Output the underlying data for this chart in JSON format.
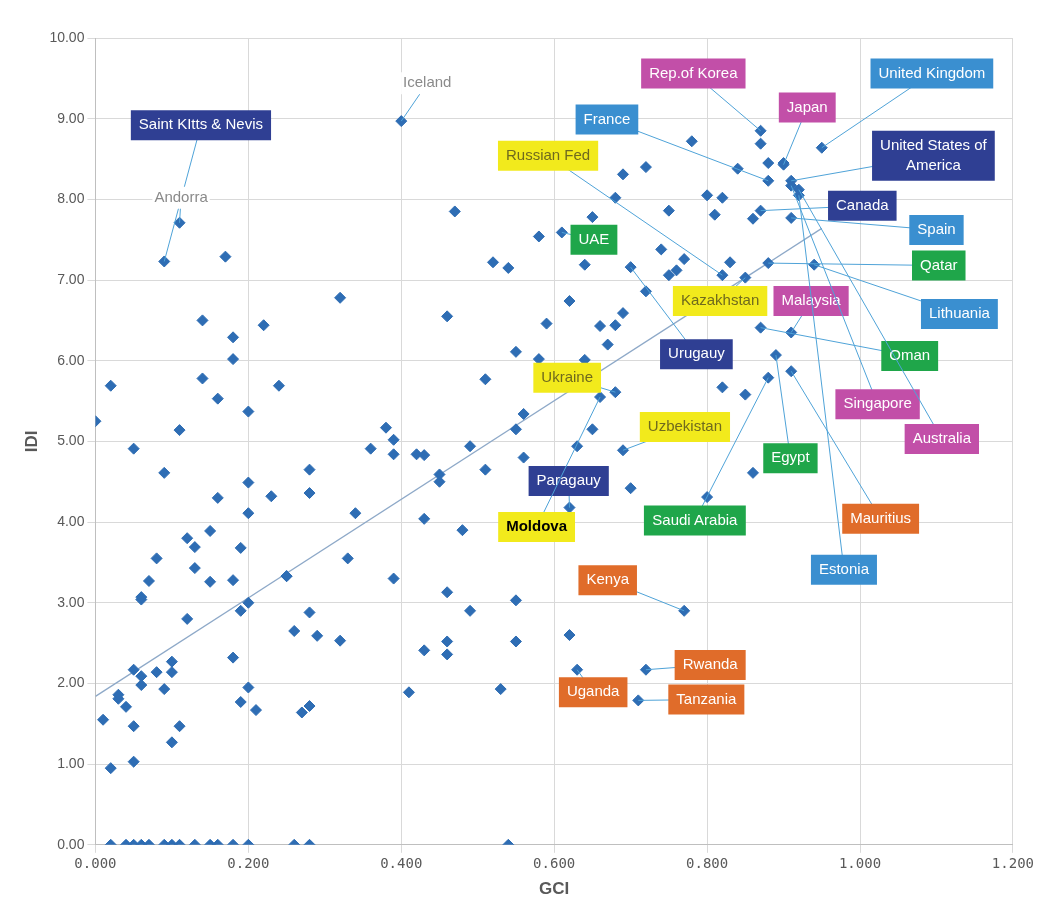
{
  "chart_data": {
    "type": "scatter",
    "xlabel": "GCI",
    "ylabel": "IDI",
    "xlim": [
      0,
      1.2
    ],
    "xticks": [
      {
        "value": 0,
        "label": "0.000"
      },
      {
        "value": 0.2,
        "label": "0.200"
      },
      {
        "value": 0.4,
        "label": "0.400"
      },
      {
        "value": 0.6,
        "label": "0.600"
      },
      {
        "value": 0.8,
        "label": "0.800"
      },
      {
        "value": 1,
        "label": "1.000"
      },
      {
        "value": 1.2,
        "label": "1.200"
      }
    ],
    "ylim": [
      0,
      10
    ],
    "yticks": [
      {
        "value": 0,
        "label": "0.00"
      },
      {
        "value": 1,
        "label": "1.00"
      },
      {
        "value": 2,
        "label": "2.00"
      },
      {
        "value": 3,
        "label": "3.00"
      },
      {
        "value": 4,
        "label": "4.00"
      },
      {
        "value": 5,
        "label": "5.00"
      },
      {
        "value": 6,
        "label": "6.00"
      },
      {
        "value": 7,
        "label": "7.00"
      },
      {
        "value": 8,
        "label": "8.00"
      },
      {
        "value": 9,
        "label": "9.00"
      },
      {
        "value": 10,
        "label": "10.00"
      }
    ],
    "grid": true,
    "legend": false,
    "marker": "diamond",
    "series": [
      {
        "type": "scatter",
        "color": "#2e6db4",
        "x": [
          0.02,
          0.14,
          0.24,
          0.0,
          0.16,
          0.2,
          0.11,
          0.05,
          0.09,
          0.2,
          0.16,
          0.23,
          0.2,
          0.28,
          0.28,
          0.36,
          0.34,
          0.12,
          0.13,
          0.08,
          0.15,
          0.13,
          0.07,
          0.06,
          0.06,
          0.15,
          0.19,
          0.18,
          0.2,
          0.19,
          0.12,
          0.25,
          0.25,
          0.33,
          0.28,
          0.26,
          0.29,
          0.32,
          0.18,
          0.05,
          0.06,
          0.06,
          0.08,
          0.1,
          0.1,
          0.09,
          0.03,
          0.03,
          0.04,
          0.2,
          0.19,
          0.21,
          0.01,
          0.05,
          0.11,
          0.27,
          0.28,
          0.1,
          0.05,
          0.02,
          0.02,
          0.04,
          0.05,
          0.06,
          0.07,
          0.09,
          0.1,
          0.11,
          0.13,
          0.15,
          0.16,
          0.18,
          0.2,
          0.26,
          0.28,
          0.54,
          0.4,
          0.11,
          0.09,
          0.17,
          0.32,
          0.14,
          0.22,
          0.46,
          0.47,
          0.18,
          0.18,
          0.51,
          0.68,
          0.66,
          0.56,
          0.55,
          0.65,
          0.38,
          0.39,
          0.39,
          0.42,
          0.43,
          0.49,
          0.56,
          0.63,
          0.69,
          0.45,
          0.45,
          0.51,
          0.7,
          0.62,
          0.43,
          0.48,
          0.39,
          0.46,
          0.55,
          0.49,
          0.77,
          0.62,
          0.46,
          0.55,
          0.43,
          0.46,
          0.63,
          0.72,
          0.41,
          0.53,
          0.71,
          0.87,
          0.87,
          0.78,
          0.95,
          0.88,
          0.9,
          0.9,
          0.84,
          0.88,
          0.91,
          0.91,
          0.92,
          0.92,
          0.72,
          0.69,
          0.68,
          0.8,
          0.82,
          0.81,
          0.75,
          0.87,
          0.86,
          0.91,
          0.65,
          0.58,
          0.61,
          0.52,
          0.54,
          0.64,
          0.7,
          0.74,
          0.77,
          0.76,
          0.75,
          0.83,
          0.82,
          0.85,
          0.88,
          0.94,
          0.72,
          0.62,
          0.69,
          0.66,
          0.68,
          0.67,
          0.59,
          0.55,
          0.87,
          0.91,
          0.89,
          0.91,
          0.88,
          0.58,
          0.64,
          0.82,
          0.85,
          0.86,
          0.8
        ],
        "values": [
          5.69,
          5.78,
          5.69,
          5.25,
          5.53,
          5.37,
          5.14,
          4.91,
          4.61,
          4.49,
          4.3,
          4.32,
          4.11,
          4.36,
          4.65,
          4.91,
          4.11,
          3.8,
          3.69,
          3.55,
          3.89,
          3.43,
          3.27,
          3.07,
          3.04,
          3.26,
          3.68,
          3.28,
          3.0,
          2.9,
          2.8,
          3.33,
          3.33,
          3.55,
          2.88,
          2.65,
          2.59,
          2.53,
          2.32,
          2.17,
          2.09,
          1.98,
          2.14,
          2.27,
          2.14,
          1.93,
          1.81,
          1.86,
          1.71,
          1.95,
          1.77,
          1.67,
          1.55,
          1.47,
          1.47,
          1.64,
          1.72,
          1.27,
          1.03,
          0.95,
          0,
          0,
          0,
          0,
          0,
          0,
          0,
          0,
          0,
          0,
          0,
          0,
          0,
          0,
          0,
          0,
          8.97,
          7.71,
          7.23,
          7.29,
          6.78,
          6.5,
          6.44,
          6.55,
          7.85,
          6.29,
          6.02,
          5.77,
          5.61,
          5.55,
          5.34,
          5.15,
          5.15,
          5.17,
          5.02,
          4.84,
          4.84,
          4.83,
          4.94,
          4.8,
          4.94,
          4.89,
          4.59,
          4.5,
          4.65,
          4.42,
          4.18,
          4.04,
          3.9,
          3.3,
          3.13,
          3.03,
          2.9,
          2.9,
          2.6,
          2.52,
          2.52,
          2.41,
          2.36,
          2.17,
          2.17,
          1.89,
          1.93,
          1.79,
          8.85,
          8.69,
          8.72,
          8.64,
          8.45,
          8.43,
          8.45,
          8.38,
          8.23,
          8.23,
          8.17,
          8.12,
          8.05,
          8.4,
          8.31,
          8.02,
          8.05,
          8.02,
          7.81,
          7.86,
          7.86,
          7.76,
          7.77,
          7.78,
          7.54,
          7.59,
          7.22,
          7.15,
          7.19,
          7.16,
          7.38,
          7.26,
          7.12,
          7.06,
          7.22,
          7.06,
          7.03,
          7.21,
          7.19,
          6.86,
          6.74,
          6.59,
          6.43,
          6.44,
          6.2,
          6.46,
          6.11,
          6.41,
          6.35,
          6.07,
          5.87,
          5.79,
          6.02,
          6.01,
          5.67,
          5.58,
          4.61,
          4.31
        ]
      },
      {
        "type": "line",
        "color": "#8ea9c8",
        "marker": "none",
        "x": [
          0,
          0.95
        ],
        "values": [
          1.84,
          7.64
        ]
      }
    ],
    "annotations": [
      {
        "text": "Saint KItts & Nevis",
        "x": 0.09,
        "y": 7.23
      },
      {
        "text": "Andorra",
        "x": 0.11,
        "y": 7.71
      },
      {
        "text": "Iceland",
        "x": 0.4,
        "y": 8.97
      },
      {
        "text": "Rep.of Korea",
        "x": 0.87,
        "y": 8.85
      },
      {
        "text": "Japan",
        "x": 0.9,
        "y": 8.43
      },
      {
        "text": "United Kingdom",
        "x": 0.95,
        "y": 8.64
      },
      {
        "text": "France",
        "x": 0.88,
        "y": 8.23
      },
      {
        "text": "United States of America",
        "x": 0.91,
        "y": 8.23
      },
      {
        "text": "Russian Fed",
        "x": 0.82,
        "y": 7.06
      },
      {
        "text": "Canada",
        "x": 0.87,
        "y": 7.86
      },
      {
        "text": "Spain",
        "x": 0.91,
        "y": 7.77
      },
      {
        "text": "UAE",
        "x": 0.61,
        "y": 7.59
      },
      {
        "text": "Qatar",
        "x": 0.88,
        "y": 7.21
      },
      {
        "text": "Kazakhstan",
        "x": 0.85,
        "y": 7.03
      },
      {
        "text": "Malaysia",
        "x": 0.91,
        "y": 6.35
      },
      {
        "text": "Lithuania",
        "x": 0.94,
        "y": 7.19
      },
      {
        "text": "Urugauy",
        "x": 0.7,
        "y": 7.16
      },
      {
        "text": "Oman",
        "x": 0.87,
        "y": 6.41
      },
      {
        "text": "Ukraine",
        "x": 0.68,
        "y": 5.61
      },
      {
        "text": "Singapore",
        "x": 0.91,
        "y": 8.17
      },
      {
        "text": "Uzbekistan",
        "x": 0.69,
        "y": 4.89
      },
      {
        "text": "Australia",
        "x": 0.92,
        "y": 8.12
      },
      {
        "text": "Egypt",
        "x": 0.89,
        "y": 6.07
      },
      {
        "text": "Paragauy",
        "x": 0.62,
        "y": 4.18
      },
      {
        "text": "Saudi Arabia",
        "x": 0.88,
        "y": 5.79
      },
      {
        "text": "Moldova",
        "x": 0.66,
        "y": 5.55
      },
      {
        "text": "Mauritius",
        "x": 0.91,
        "y": 5.87
      },
      {
        "text": "Estonia",
        "x": 0.92,
        "y": 8.05
      },
      {
        "text": "Kenya",
        "x": 0.77,
        "y": 2.9
      },
      {
        "text": "Rwanda",
        "x": 0.72,
        "y": 2.17
      },
      {
        "text": "Uganda",
        "x": 0.63,
        "y": 2.17
      },
      {
        "text": "Tanzania",
        "x": 0.71,
        "y": 1.79
      }
    ]
  }
}
